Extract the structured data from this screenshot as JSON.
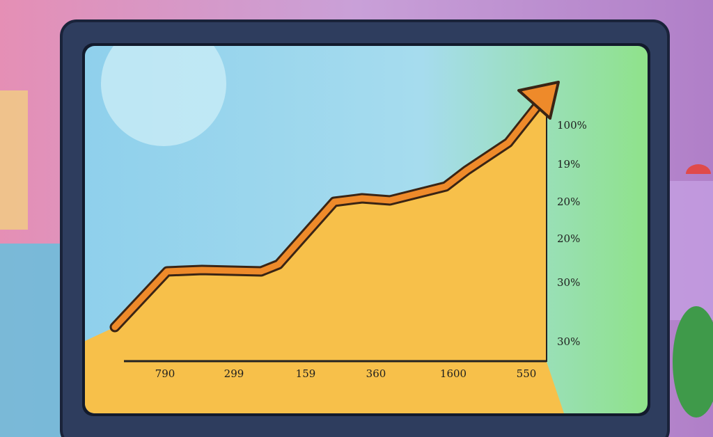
{
  "screen": {
    "x_labels": [
      "790",
      "299",
      "159",
      "360",
      "1600",
      "550"
    ],
    "y_labels": [
      "100%",
      "19%",
      "20%",
      "20%",
      "30%",
      "30%"
    ]
  }
}
